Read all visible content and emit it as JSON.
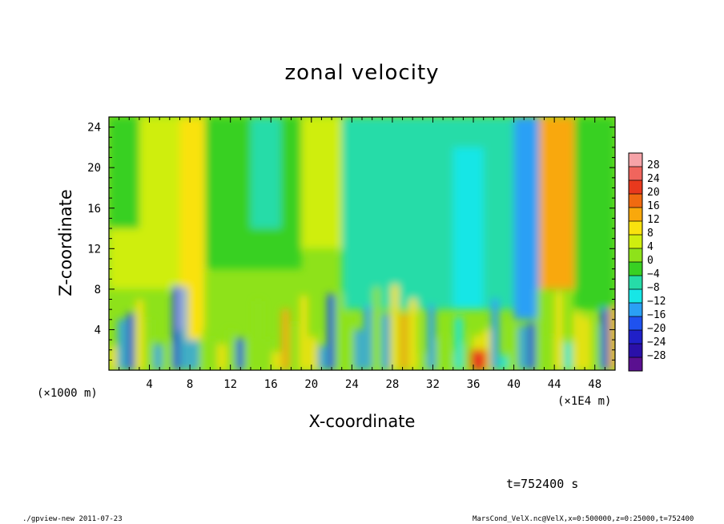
{
  "chart_data": {
    "type": "heatmap",
    "title": "zonal velocity",
    "xlabel": "X-coordinate",
    "ylabel": "Z-coordinate",
    "x_scale_note": "(×1000 m)",
    "x_scale_note_2": "(×1E4 m)",
    "xlim": [
      0,
      50
    ],
    "ylim": [
      0,
      25
    ],
    "x_ticks": [
      4,
      8,
      12,
      16,
      20,
      24,
      28,
      32,
      36,
      40,
      44,
      48
    ],
    "x_tick_labels": [
      "4",
      "8",
      "12",
      "16",
      "20",
      "24",
      "28",
      "32",
      "36",
      "40",
      "44",
      "48"
    ],
    "y_ticks": [
      4,
      8,
      12,
      16,
      20,
      24
    ],
    "y_tick_labels": [
      "4",
      "8",
      "12",
      "16",
      "20",
      "24"
    ],
    "colorbar": {
      "levels": [
        28,
        24,
        20,
        16,
        12,
        8,
        4,
        0,
        -4,
        -8,
        -12,
        -16,
        -20,
        -24,
        -28
      ],
      "labels": [
        "28",
        "24",
        "20",
        "16",
        "12",
        "8",
        "4",
        "0",
        "−4",
        "−8",
        "−12",
        "−16",
        "−20",
        "−24",
        "−28"
      ],
      "colors_top_to_bottom": [
        "#f6a3a8",
        "#f0655d",
        "#e8391d",
        "#f06a10",
        "#f9a80c",
        "#f9e20e",
        "#cfee0f",
        "#8ee21a",
        "#39d023",
        "#26dca8",
        "#17e6e6",
        "#2aa0f5",
        "#1f52ef",
        "#2020c8",
        "#2a10a8",
        "#5a1090"
      ]
    },
    "features": [
      {
        "name": "positive band",
        "x": 8.5,
        "z_range": [
          3,
          25
        ],
        "value": 10
      },
      {
        "name": "negative band",
        "x": 25,
        "z_range": [
          10,
          25
        ],
        "value": -8
      },
      {
        "name": "negative band",
        "x": 41,
        "z_range": [
          6,
          25
        ],
        "value": -14
      },
      {
        "name": "positive band",
        "x": 44.5,
        "z_range": [
          8,
          25
        ],
        "value": 14
      },
      {
        "name": "surface maximum",
        "x": 36.5,
        "z_range": [
          0,
          2
        ],
        "value": 22
      }
    ]
  },
  "time_label": "t=752400 s",
  "footer": {
    "left": "./gpview-new   2011-07-23",
    "right": "MarsCond_VelX.nc@VelX,x=0:500000,z=0:25000,t=752400"
  }
}
